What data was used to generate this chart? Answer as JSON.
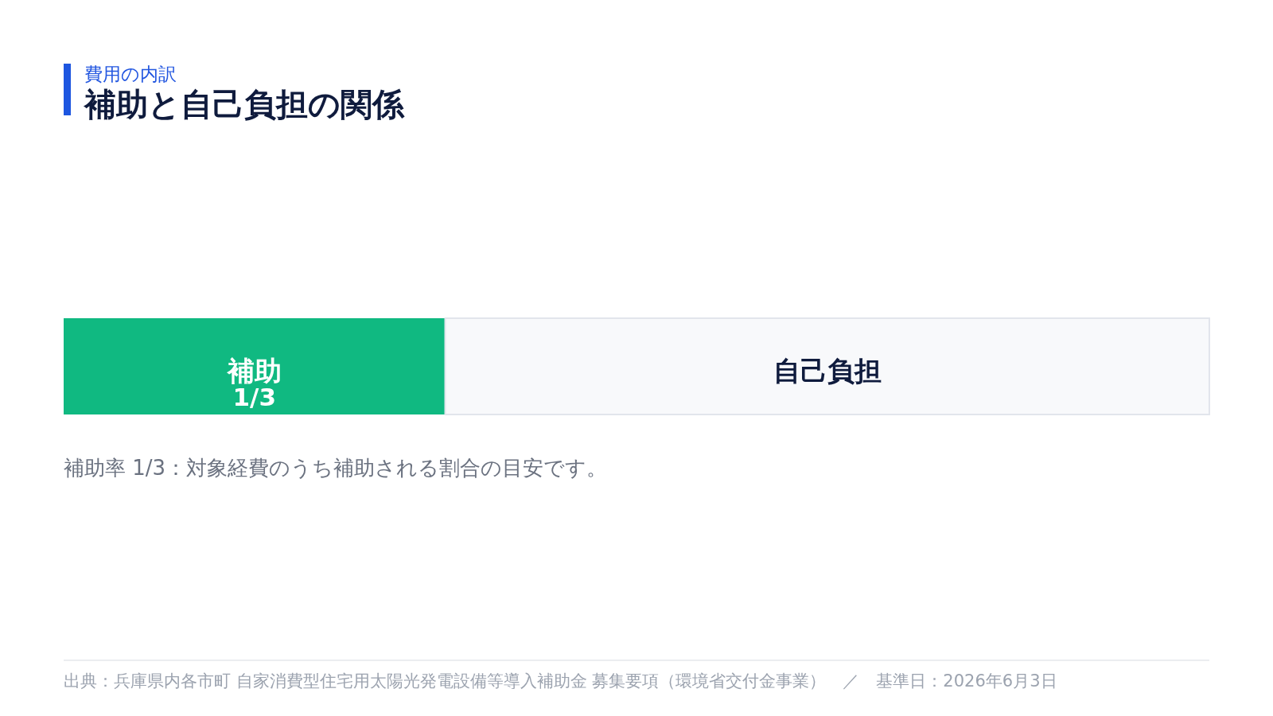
{
  "chart_data": {
    "type": "bar",
    "orientation": "horizontal",
    "stacked": true,
    "subtitle": "費用の内訳",
    "title": "補助と自己負担の関係",
    "categories": [
      null
    ],
    "xlim": [
      0,
      1
    ],
    "series": [
      {
        "name": "補助",
        "color": "#10b981",
        "values": [
          0.333
        ],
        "value_labels": [
          "1/3"
        ]
      },
      {
        "name": "自己負担",
        "color": "#f8f9fb",
        "values": [
          0.667
        ]
      }
    ],
    "annotations": [
      "補助率 1/3：対象経費のうち補助される割合の目安です。",
      "出典：兵庫県内各市町 自家消費型住宅用太陽光発電設備等導入補助金 募集要項（環境省交付金事業）　／　基準日：2026年6月3日"
    ]
  }
}
